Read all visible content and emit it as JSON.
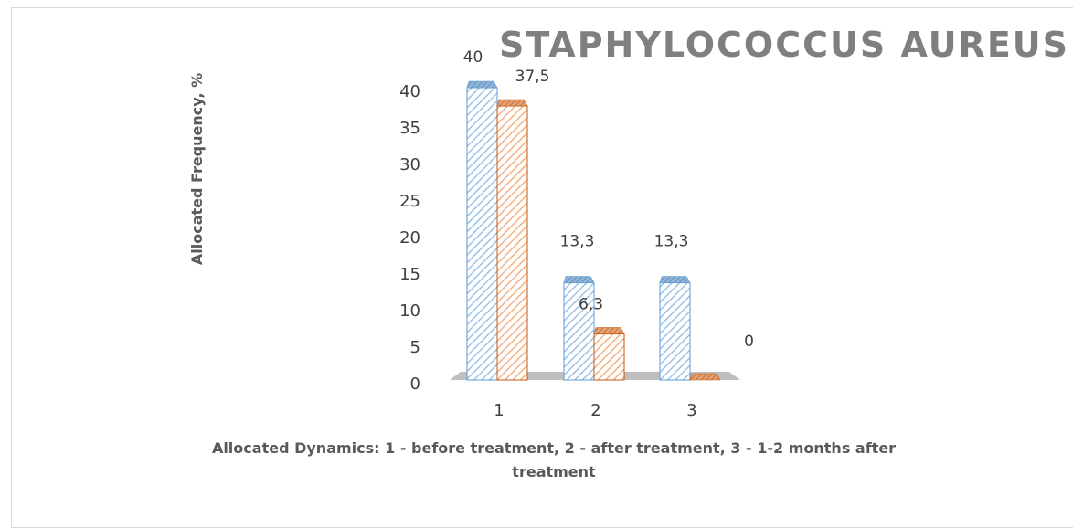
{
  "chart_data": {
    "type": "bar",
    "title": "STAPHYLOCOCCUS AUREUS",
    "ylabel": "Allocated Frequency, %",
    "xlabel_line1": "Allocated Dynamics: 1 - before treatment, 2 - after treatment, 3 - 1-2 months after",
    "xlabel_line2": "treatment",
    "categories": [
      "1",
      "2",
      "3"
    ],
    "series": [
      {
        "values": [
          40,
          13.3,
          13.3
        ],
        "labels": [
          "40",
          "13,3",
          "13,3"
        ],
        "color": "#9dc3e6",
        "edge": "#5b9bd5"
      },
      {
        "values": [
          37.5,
          6.3,
          0
        ],
        "labels": [
          "37,5",
          "6,3",
          "0"
        ],
        "color": "#f4b183",
        "edge": "#c55a11"
      }
    ],
    "yticks": [
      "0",
      "5",
      "10",
      "15",
      "20",
      "25",
      "30",
      "35",
      "40"
    ],
    "ylim": [
      0,
      40
    ],
    "grid": false,
    "legend": "none",
    "style": "3d-hatched",
    "floor_color": "#bfbfbf"
  }
}
